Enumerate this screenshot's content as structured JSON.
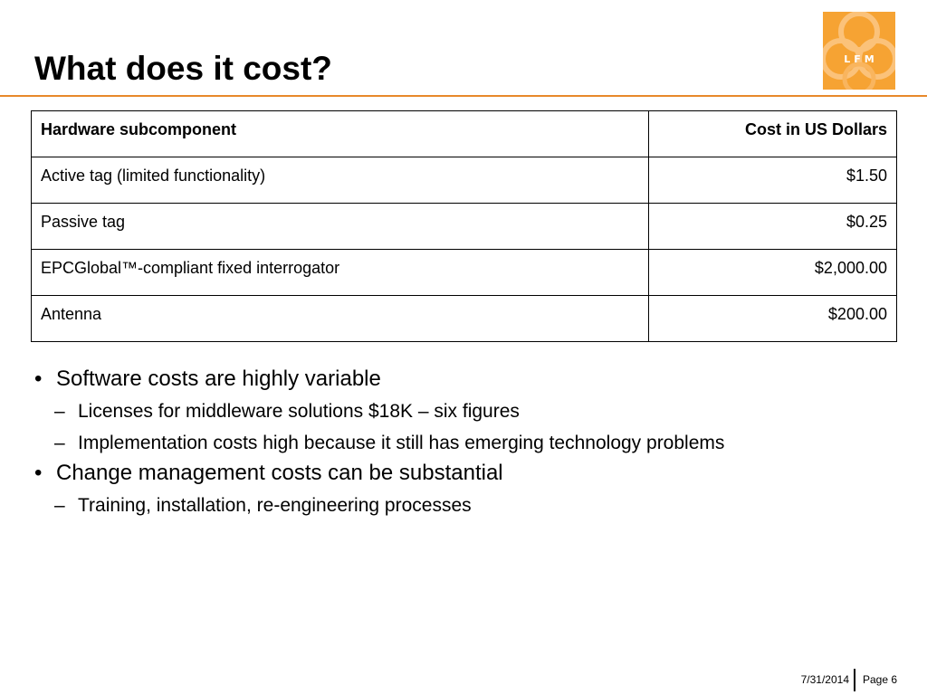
{
  "slide": {
    "title": "What does it cost?",
    "accent_color": "#e8892b",
    "logo": {
      "text": "LFM",
      "color": "#f6a333",
      "icon": "lfm-logo-icon"
    }
  },
  "table": {
    "headers": [
      "Hardware subcomponent",
      "Cost in US Dollars"
    ],
    "rows": [
      [
        "Active tag (limited functionality)",
        "$1.50"
      ],
      [
        "Passive tag",
        "$0.25"
      ],
      [
        "EPCGlobal™-compliant fixed interrogator",
        "$2,000.00"
      ],
      [
        "Antenna",
        "$200.00"
      ]
    ]
  },
  "bullets": [
    {
      "text": "Software costs are highly variable",
      "marker": "•",
      "children": [
        {
          "text": "Licenses for middleware solutions $18K – six figures",
          "marker": "–"
        },
        {
          "text": "Implementation costs high because it still has emerging technology problems",
          "marker": "–"
        }
      ]
    },
    {
      "text": "Change management costs can be substantial",
      "marker": "•",
      "children": [
        {
          "text": "Training, installation, re-engineering processes",
          "marker": "–"
        }
      ]
    }
  ],
  "footer": {
    "date": "7/31/2014",
    "page": "Page 6"
  }
}
